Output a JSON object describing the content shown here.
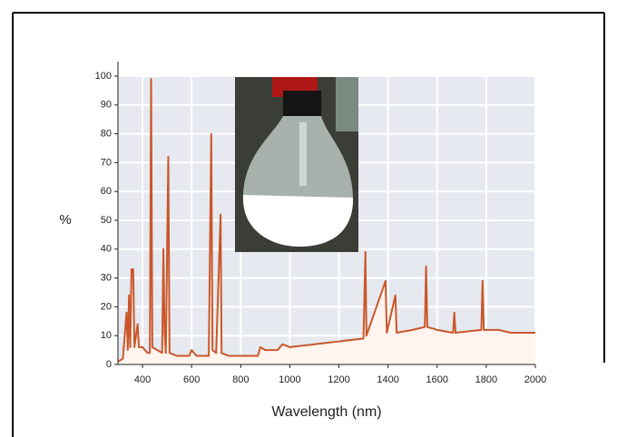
{
  "chart_data": {
    "type": "line",
    "x_label": "Wavelength (nm)",
    "y_label": "%",
    "x": [
      300,
      320,
      335,
      340,
      345,
      350,
      355,
      362,
      367,
      380,
      385,
      400,
      420,
      430,
      435,
      440,
      460,
      480,
      485,
      490,
      495,
      505,
      510,
      540,
      590,
      600,
      620,
      670,
      680,
      685,
      700,
      718,
      722,
      750,
      870,
      880,
      900,
      950,
      970,
      1000,
      1100,
      1200,
      1300,
      1308,
      1312,
      1390,
      1395,
      1430,
      1435,
      1500,
      1550,
      1555,
      1560,
      1600,
      1665,
      1670,
      1675,
      1780,
      1785,
      1790,
      1850,
      1900,
      2000
    ],
    "values": [
      1,
      2,
      18,
      5,
      24,
      6,
      33,
      33,
      6,
      14,
      6,
      6,
      4,
      4,
      99,
      6,
      5,
      4,
      40,
      11,
      4,
      72,
      4,
      3,
      3,
      5,
      3,
      3,
      80,
      5,
      4,
      52,
      4,
      3,
      3,
      6,
      5,
      5,
      7,
      6,
      7,
      8,
      9,
      39,
      10,
      29,
      11,
      24,
      11,
      12,
      13,
      34,
      13,
      12,
      11,
      18,
      11,
      12,
      29,
      12,
      12,
      11,
      11
    ],
    "color": "#c9572b",
    "xlim": [
      300,
      2000
    ],
    "xticks": [
      400,
      600,
      800,
      1000,
      1200,
      1400,
      1600,
      1800,
      2000
    ],
    "ylim": [
      0,
      100
    ],
    "yticks": [
      0,
      10,
      20,
      30,
      40,
      50,
      60,
      70,
      80,
      90,
      100
    ],
    "grid": true
  }
}
